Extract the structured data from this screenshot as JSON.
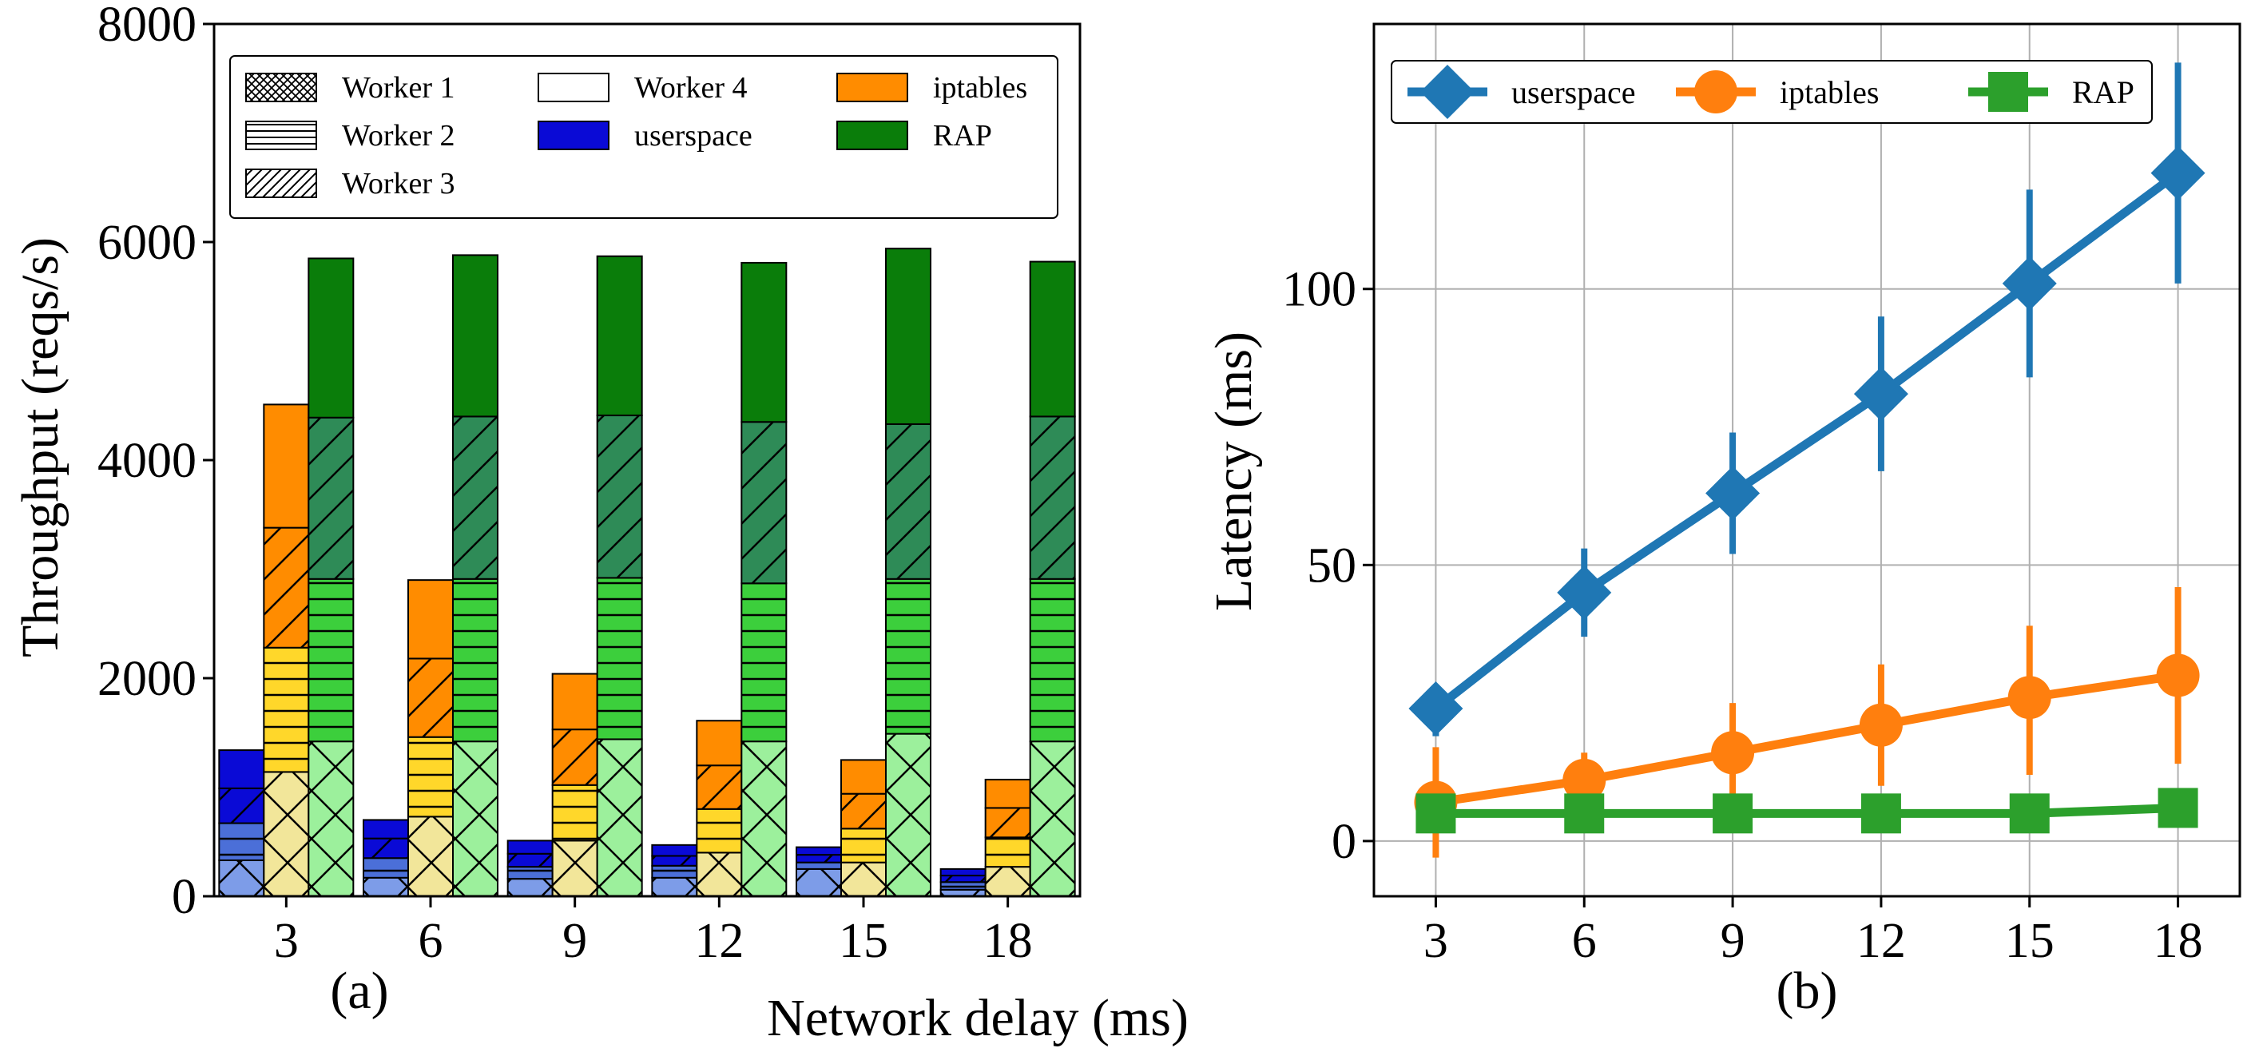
{
  "figure": {
    "shared_xlabel": "Network delay (ms)"
  },
  "colors": {
    "userspace": "#0a0ad6",
    "userspace_light": "#4b6fd8",
    "userspace_lighter": "#7d9ce8",
    "iptables": "#ff8c00",
    "iptables_light": "#ffc107",
    "iptables_lighter": "#ffd72a",
    "iptables_lightest": "#f2e69a",
    "rap": "#0a7d0a",
    "rap_light": "#2e8b57",
    "rap_mid": "#3ccf3c",
    "rap_lightest": "#9cf09c",
    "line_userspace": "#1f77b4",
    "line_iptables": "#ff7f0e",
    "line_rap": "#2ca02c"
  },
  "chart_data": [
    {
      "type": "bar",
      "stacked": true,
      "panel_label": "(a)",
      "ylabel": "Throughput (reqs/s)",
      "xlabel": "Network delay (ms)",
      "categories": [
        "3",
        "6",
        "9",
        "12",
        "15",
        "18"
      ],
      "ylim": [
        0,
        8000
      ],
      "yticks": [
        "0",
        "2000",
        "4000",
        "6000",
        "8000"
      ],
      "stack_order": [
        "Worker 1",
        "Worker 2",
        "Worker 3",
        "Worker 4"
      ],
      "groups": [
        {
          "name": "userspace",
          "workers": [
            [
              330,
              170,
              160,
              170,
              250,
              60
            ],
            [
              340,
              180,
              110,
              110,
              60,
              70
            ],
            [
              320,
              180,
              120,
              90,
              70,
              60
            ],
            [
              350,
              170,
              120,
              100,
              70,
              60
            ]
          ]
        },
        {
          "name": "iptables",
          "workers": [
            [
              1140,
              730,
              510,
              400,
              310,
              270
            ],
            [
              1140,
              730,
              510,
              400,
              310,
              270
            ],
            [
              1100,
              720,
              510,
              400,
              320,
              270
            ],
            [
              1130,
              720,
              510,
              410,
              310,
              260
            ]
          ]
        },
        {
          "name": "RAP",
          "workers": [
            [
              1420,
              1420,
              1440,
              1420,
              1490,
              1420
            ],
            [
              1490,
              1490,
              1480,
              1450,
              1420,
              1490
            ],
            [
              1480,
              1490,
              1490,
              1480,
              1420,
              1490
            ],
            [
              1460,
              1480,
              1460,
              1460,
              1610,
              1420
            ]
          ]
        }
      ],
      "legend": {
        "position": "top-left",
        "entries": [
          "Worker 1",
          "Worker 2",
          "Worker 3",
          "Worker 4",
          "userspace",
          "iptables",
          "RAP"
        ]
      }
    },
    {
      "type": "line",
      "panel_label": "(b)",
      "ylabel": "Latency (ms)",
      "xlabel": "Network delay (ms)",
      "x": [
        3,
        6,
        9,
        12,
        15,
        18
      ],
      "xticks": [
        "3",
        "6",
        "9",
        "12",
        "15",
        "18"
      ],
      "ylim": [
        -10,
        148
      ],
      "xlim": [
        1.75,
        19.25
      ],
      "yticks": [
        "0",
        "50",
        "100"
      ],
      "grid": true,
      "series": [
        {
          "name": "userspace",
          "marker": "diamond",
          "values": [
            24,
            45,
            63,
            81,
            101,
            121
          ],
          "err_low": [
            19,
            37,
            52,
            67,
            84,
            101
          ],
          "err_high": [
            28,
            53,
            74,
            95,
            118,
            141
          ]
        },
        {
          "name": "iptables",
          "marker": "circle",
          "values": [
            7,
            11,
            16,
            21,
            26,
            30
          ],
          "err_low": [
            -3,
            6,
            7,
            10,
            12,
            14
          ],
          "err_high": [
            17,
            16,
            25,
            32,
            39,
            46
          ]
        },
        {
          "name": "RAP",
          "marker": "square",
          "values": [
            5,
            5,
            5,
            5,
            5,
            6
          ],
          "err_low": [
            5,
            5,
            5,
            5,
            5,
            6
          ],
          "err_high": [
            5,
            5,
            5,
            5,
            5,
            6
          ]
        }
      ],
      "legend": {
        "position": "top",
        "entries": [
          "userspace",
          "iptables",
          "RAP"
        ]
      }
    }
  ]
}
